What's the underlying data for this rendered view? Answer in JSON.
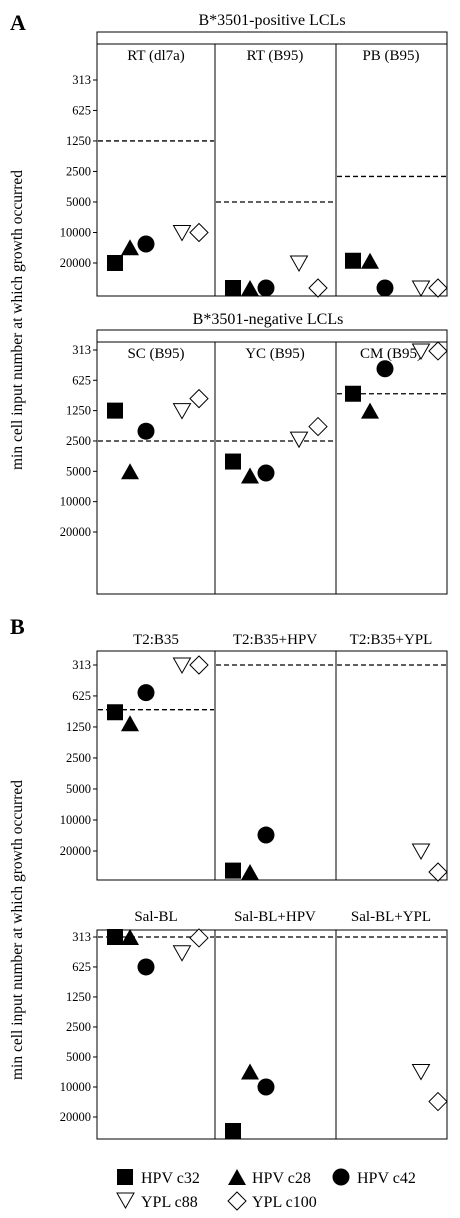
{
  "panel_labels": {
    "a": "A",
    "b": "B"
  },
  "y_axis_label": "min cell input number at which growth occurred",
  "group_labels": {
    "positive": "B*3501-positive LCLs",
    "negative": "B*3501-negative LCLs"
  },
  "series": [
    {
      "key": "c32",
      "name": "HPV c32",
      "marker": "square-filled"
    },
    {
      "key": "c28",
      "name": "HPV c28",
      "marker": "triangle-filled"
    },
    {
      "key": "c42",
      "name": "HPV c42",
      "marker": "circle-filled"
    },
    {
      "key": "c88",
      "name": "YPL c88",
      "marker": "triangle-down-open"
    },
    {
      "key": "c100",
      "name": "YPL c100",
      "marker": "diamond-open"
    }
  ],
  "chart_data": [
    {
      "type": "scatter",
      "panel": "A",
      "group": "B*3501-positive LCLs",
      "y_scale": "log-reversed",
      "yticks": [
        313,
        625,
        1250,
        2500,
        5000,
        10000,
        20000
      ],
      "columns": [
        {
          "title": "RT (dl7a)",
          "threshold": 1250,
          "points": {
            "c32": 20000,
            "c28": 14000,
            "c42": 13000,
            "c88": 10000,
            "c100": 10000
          }
        },
        {
          "title": "RT (B95)",
          "threshold": 5000,
          "points": {
            "c32": 40000,
            "c28": 40000,
            "c42": 40000,
            "c88": 20000,
            "c100": 40000
          }
        },
        {
          "title": "PB (B95)",
          "threshold": 2800,
          "points": {
            "c32": 19000,
            "c28": 19000,
            "c42": 40000,
            "c88": 40000,
            "c100": 40000
          }
        }
      ]
    },
    {
      "type": "scatter",
      "panel": "A",
      "group": "B*3501-negative LCLs",
      "y_scale": "log-reversed",
      "yticks": [
        313,
        625,
        1250,
        2500,
        5000,
        10000,
        20000
      ],
      "columns": [
        {
          "title": "SC (B95)",
          "threshold": 2500,
          "points": {
            "c32": 1250,
            "c28": 5000,
            "c42": 2000,
            "c88": 1250,
            "c100": 950
          }
        },
        {
          "title": "YC (B95)",
          "threshold": 2500,
          "points": {
            "c32": 4000,
            "c28": 5500,
            "c42": 5200,
            "c88": 2400,
            "c100": 1800
          }
        },
        {
          "title": "CM (B95)",
          "threshold": 850,
          "points": {
            "c32": 850,
            "c28": 1250,
            "c42": 480,
            "c88": 320,
            "c100": 320
          }
        }
      ]
    },
    {
      "type": "scatter",
      "panel": "B",
      "group": "T2",
      "y_scale": "log-reversed",
      "yticks": [
        313,
        625,
        1250,
        2500,
        5000,
        10000,
        20000
      ],
      "columns": [
        {
          "title": "T2:B35",
          "threshold": 850,
          "points": {
            "c32": 900,
            "c28": 1150,
            "c42": 580,
            "c88": 313,
            "c100": 313
          }
        },
        {
          "title": "T2:B35+HPV",
          "threshold": 313,
          "points": {
            "c32": 31000,
            "c28": 38000,
            "c42": 14000
          }
        },
        {
          "title": "T2:B35+YPL",
          "threshold": 313,
          "points": {
            "c88": 20000,
            "c100": 38000
          }
        }
      ]
    },
    {
      "type": "scatter",
      "panel": "B",
      "group": "Sal-BL",
      "y_scale": "log-reversed",
      "yticks": [
        313,
        625,
        1250,
        2500,
        5000,
        10000,
        20000
      ],
      "columns": [
        {
          "title": "Sal-BL",
          "threshold": 313,
          "points": {
            "c32": 313,
            "c28": 313,
            "c42": 625,
            "c88": 450,
            "c100": 320
          }
        },
        {
          "title": "Sal-BL+HPV",
          "threshold": 313,
          "points": {
            "c32": 36000,
            "c28": 7000,
            "c42": 10000
          }
        },
        {
          "title": "Sal-BL+YPL",
          "threshold": 313,
          "points": {
            "c88": 7000,
            "c100": 14000
          }
        }
      ]
    }
  ]
}
